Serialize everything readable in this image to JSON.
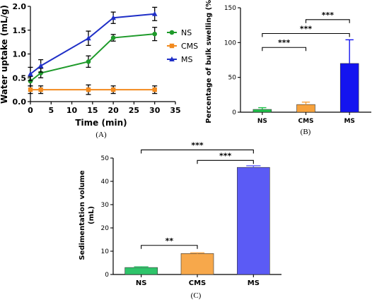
{
  "chart_data": [
    {
      "panel_label": "(A)",
      "type": "line",
      "xlabel": "Time (min)",
      "ylabel": "Water uptake (mL/g)",
      "xlim": [
        0,
        35
      ],
      "ylim": [
        0,
        2.0
      ],
      "x_ticks": [
        "0",
        "5",
        "10",
        "15",
        "20",
        "25",
        "30",
        "35"
      ],
      "y_ticks": [
        "0.0",
        "0.5",
        "1.0",
        "1.5",
        "2.0"
      ],
      "legend_position": "right",
      "series": [
        {
          "name": "NS",
          "color": "#1e9a2a",
          "marker": "circle",
          "x": [
            0,
            2.5,
            14,
            20,
            30
          ],
          "y": [
            0.43,
            0.6,
            0.84,
            1.34,
            1.42
          ],
          "err": [
            0.1,
            0.1,
            0.12,
            0.07,
            0.14
          ]
        },
        {
          "name": "CMS",
          "color": "#f28a1e",
          "marker": "square",
          "x": [
            0,
            2.5,
            14,
            20,
            30
          ],
          "y": [
            0.25,
            0.25,
            0.25,
            0.25,
            0.25
          ],
          "err": [
            0.08,
            0.08,
            0.1,
            0.08,
            0.08
          ]
        },
        {
          "name": "MS",
          "color": "#1f2fc7",
          "marker": "triangle",
          "x": [
            0,
            2.5,
            14,
            20,
            30
          ],
          "y": [
            0.58,
            0.75,
            1.33,
            1.76,
            1.84
          ],
          "err": [
            0.14,
            0.13,
            0.15,
            0.12,
            0.14
          ]
        }
      ]
    },
    {
      "panel_label": "(B)",
      "type": "bar",
      "ylabel": "Percentage of bulk swelling (%)",
      "ylim": [
        0,
        150
      ],
      "y_ticks": [
        "0",
        "50",
        "100",
        "150"
      ],
      "categories": [
        "NS",
        "CMS",
        "MS"
      ],
      "values": [
        4,
        11,
        70
      ],
      "errors": [
        2.5,
        3.5,
        34
      ],
      "colors": [
        "#1ec24a",
        "#f7a23c",
        "#1414f0"
      ],
      "significance": [
        {
          "from": 0,
          "to": 1,
          "label": "***",
          "y": 93
        },
        {
          "from": 0,
          "to": 2,
          "label": "***",
          "y": 113
        },
        {
          "from": 1,
          "to": 2,
          "label": "***",
          "y": 133
        }
      ]
    },
    {
      "panel_label": "(C)",
      "type": "bar",
      "ylabel": "Sedimentation volume (mL)",
      "ylim": [
        0,
        50
      ],
      "y_ticks": [
        "0",
        "10",
        "20",
        "30",
        "40",
        "50"
      ],
      "categories": [
        "NS",
        "CMS",
        "MS"
      ],
      "values": [
        3,
        9,
        46
      ],
      "errors": [
        0.3,
        0.35,
        0.7
      ],
      "colors": [
        "#2ec46a",
        "#f7a84b",
        "#5b5bf5"
      ],
      "significance": [
        {
          "from": 0,
          "to": 1,
          "label": "**",
          "y": 12.5
        },
        {
          "from": 1,
          "to": 2,
          "label": "***",
          "y": 49
        },
        {
          "from": 0,
          "to": 2,
          "label": "***",
          "y": 53.5
        }
      ]
    }
  ]
}
